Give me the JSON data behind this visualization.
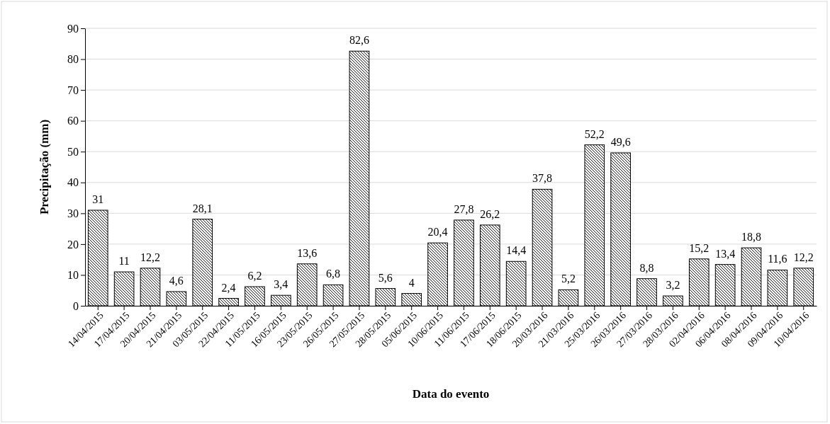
{
  "chart_data": {
    "type": "bar",
    "xlabel": "Data do evento",
    "ylabel": "Precipitação (mm)",
    "categories": [
      "14/04/2015",
      "17/04/2015",
      "20/04/2015",
      "21/04/2015",
      "03/05/2015",
      "22/04/2015",
      "11/05/2015",
      "16/05/2015",
      "23/05/2015",
      "26/05/2015",
      "27/05/2015",
      "28/05/2015",
      "05/06/2015",
      "10/06/2015",
      "11/06/2015",
      "17/06/2015",
      "18/06/2015",
      "20/03/2016",
      "21/03/2016",
      "25/03/2016",
      "26/03/2016",
      "27/03/2016",
      "28/03/2016",
      "02/04/2016",
      "06/04/2016",
      "08/04/2016",
      "09/04/2016",
      "10/04/2016"
    ],
    "values": [
      31,
      11,
      12.2,
      4.6,
      28.1,
      2.4,
      6.2,
      3.4,
      13.6,
      6.8,
      82.6,
      5.6,
      4,
      20.4,
      27.8,
      26.2,
      14.4,
      37.8,
      5.2,
      52.2,
      49.6,
      8.8,
      3.2,
      15.2,
      13.4,
      18.8,
      11.6,
      12.2
    ],
    "value_labels": [
      "31",
      "11",
      "12,2",
      "4,6",
      "28,1",
      "2,4",
      "6,2",
      "3,4",
      "13,6",
      "6,8",
      "82,6",
      "5,6",
      "4",
      "20,4",
      "27,8",
      "26,2",
      "14,4",
      "37,8",
      "5,2",
      "52,2",
      "49,6",
      "8,8",
      "3,2",
      "15,2",
      "13,4",
      "18,8",
      "11,6",
      "12,2"
    ],
    "color": "#000000",
    "ylim": [
      0,
      90
    ],
    "yticks": [
      0,
      10,
      20,
      30,
      40,
      50,
      60,
      70,
      80,
      90
    ],
    "grid": "y"
  }
}
